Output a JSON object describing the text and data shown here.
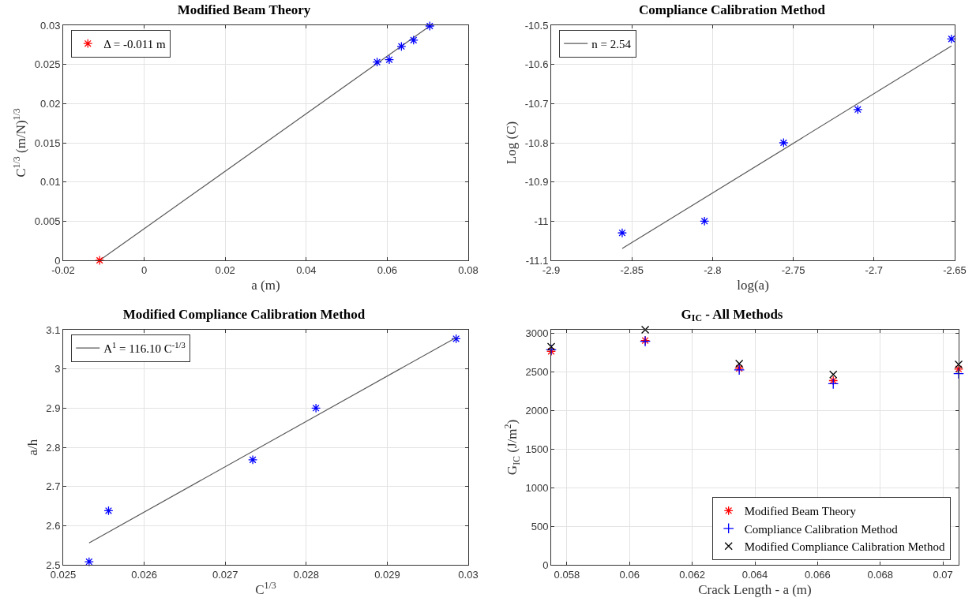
{
  "chart_data": [
    {
      "type": "scatter",
      "title": "Modified Beam Theory",
      "xlabel": "a (m)",
      "ylabel": "C$^{1/3}$ (m/N)$^{1/3}$",
      "xlim": [
        -0.02,
        0.08
      ],
      "xticks": [
        -0.02,
        0,
        0.02,
        0.04,
        0.06,
        0.08
      ],
      "ylim": [
        0,
        0.03
      ],
      "yticks": [
        0,
        0.005,
        0.01,
        0.015,
        0.02,
        0.025,
        0.03
      ],
      "grid": true,
      "legend": "top left",
      "marker": "cross",
      "series": [
        {
          "type": "line",
          "marker": "none",
          "color": "#595959",
          "x": [
            -0.011,
            0.0705
          ],
          "values": [
            0,
            0.0299
          ]
        },
        {
          "color": "#0000ff",
          "x": [
            0.0575,
            0.0605,
            0.0635,
            0.0665,
            0.0705
          ],
          "values": [
            0.0253,
            0.0256,
            0.0273,
            0.0281,
            0.0299
          ]
        },
        {
          "name": "Δ = -0.011 m",
          "color": "#ff0000",
          "x": [
            -0.011
          ],
          "values": [
            0
          ]
        }
      ]
    },
    {
      "type": "scatter",
      "title": "Compliance Calibration Method",
      "xlabel": "log(a)",
      "ylabel": "Log (C)",
      "xlim": [
        -2.9,
        -2.65
      ],
      "xticks": [
        -2.9,
        -2.85,
        -2.8,
        -2.75,
        -2.7,
        -2.65
      ],
      "ylim": [
        -11.1,
        -10.5
      ],
      "yticks": [
        -11.1,
        -11,
        -10.9,
        -10.8,
        -10.7,
        -10.6,
        -10.5
      ],
      "grid": true,
      "legend": "top left",
      "marker": "cross",
      "series": [
        {
          "color": "#0000ff",
          "x": [
            -2.856,
            -2.805,
            -2.756,
            -2.71,
            -2.652
          ],
          "values": [
            -11.03,
            -11.0,
            -10.8,
            -10.715,
            -10.535
          ]
        },
        {
          "type": "line",
          "marker": "none",
          "name": "n = 2.54",
          "color": "#595959",
          "x": [
            -2.856,
            -2.652
          ],
          "values": [
            -11.07,
            -10.553
          ]
        }
      ]
    },
    {
      "type": "scatter",
      "title": "Modified Compliance Calibration Method",
      "xlabel": "C$^{1/3}$",
      "ylabel": "a/h",
      "xlim": [
        0.025,
        0.03
      ],
      "xticks": [
        0.025,
        0.026,
        0.027,
        0.028,
        0.029,
        0.03
      ],
      "ylim": [
        2.5,
        3.1
      ],
      "yticks": [
        2.5,
        2.6,
        2.7,
        2.8,
        2.9,
        3,
        3.1
      ],
      "grid": true,
      "legend": "top left",
      "marker": "cross",
      "series": [
        {
          "color": "#0000ff",
          "x": [
            0.02532,
            0.02556,
            0.02734,
            0.02812,
            0.02985
          ],
          "values": [
            2.508,
            2.638,
            2.768,
            2.9,
            3.077
          ]
        },
        {
          "type": "line",
          "marker": "none",
          "name": "A$^{1}$ = 116.10 C$^{-1/3}$",
          "color": "#595959",
          "x": [
            0.02532,
            0.02985
          ],
          "values": [
            2.556,
            3.08
          ]
        }
      ]
    },
    {
      "type": "scatter",
      "title": "G$_{IC}$ - All Methods",
      "xlabel": "Crack Length - a (m)",
      "ylabel": "G$_{IC}$ (J/m$^{2}$)",
      "xlim": [
        0.0575,
        0.0705
      ],
      "xticks": [
        0.058,
        0.06,
        0.062,
        0.064,
        0.066,
        0.068,
        0.07
      ],
      "ylim": [
        0,
        3050
      ],
      "yticks": [
        0,
        500,
        1000,
        1500,
        2000,
        2500,
        3000
      ],
      "grid": true,
      "legend": "bottom right",
      "x": [
        0.0575,
        0.0605,
        0.0635,
        0.0665,
        0.0705
      ],
      "series": [
        {
          "name": "Modified Beam Theory",
          "marker": "cross",
          "color": "#ff0000",
          "values": [
            2770,
            2910,
            2550,
            2390,
            2540
          ]
        },
        {
          "name": "Compliance Calibration Method",
          "marker": "plus",
          "color": "#0000ff",
          "values": [
            2790,
            2900,
            2530,
            2350,
            2480
          ]
        },
        {
          "name": "Modified Compliance Calibration Method",
          "marker": "x",
          "color": "#000000",
          "values": [
            2830,
            3050,
            2610,
            2470,
            2600
          ]
        }
      ]
    }
  ]
}
